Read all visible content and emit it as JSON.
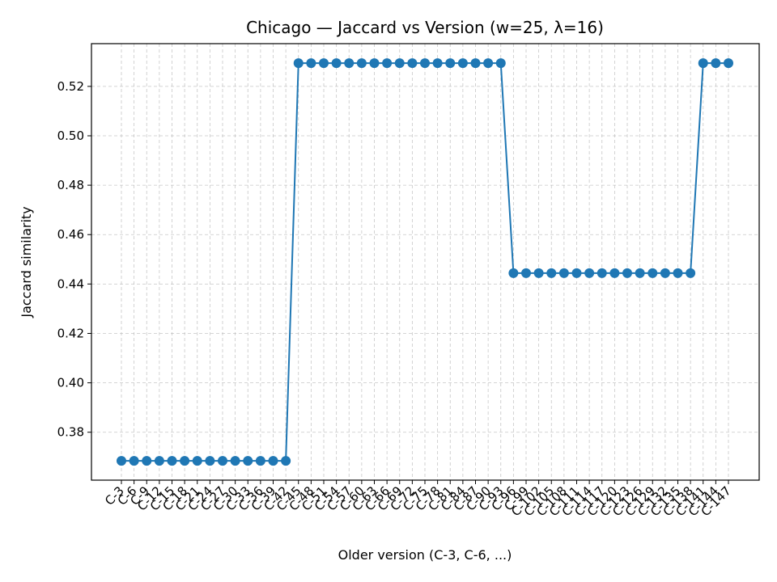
{
  "chart_data": {
    "type": "line",
    "title": "Chicago — Jaccard vs Version (w=25, λ=16)",
    "xlabel": "Older version (C-3, C-6, ...)",
    "ylabel": "Jaccard similarity",
    "categories": [
      "C-3",
      "C-6",
      "C-9",
      "C-12",
      "C-15",
      "C-18",
      "C-21",
      "C-24",
      "C-27",
      "C-30",
      "C-33",
      "C-36",
      "C-39",
      "C-42",
      "C-45",
      "C-48",
      "C-51",
      "C-54",
      "C-57",
      "C-60",
      "C-63",
      "C-66",
      "C-69",
      "C-72",
      "C-75",
      "C-78",
      "C-81",
      "C-84",
      "C-87",
      "C-90",
      "C-93",
      "C-96",
      "C-99",
      "C-102",
      "C-105",
      "C-108",
      "C-111",
      "C-114",
      "C-117",
      "C-120",
      "C-123",
      "C-126",
      "C-129",
      "C-132",
      "C-135",
      "C-138",
      "C-141",
      "C-144",
      "C-147"
    ],
    "series": [
      {
        "values": [
          0.3684,
          0.3684,
          0.3684,
          0.3684,
          0.3684,
          0.3684,
          0.3684,
          0.3684,
          0.3684,
          0.3684,
          0.3684,
          0.3684,
          0.3684,
          0.3684,
          0.5294,
          0.5294,
          0.5294,
          0.5294,
          0.5294,
          0.5294,
          0.5294,
          0.5294,
          0.5294,
          0.5294,
          0.5294,
          0.5294,
          0.5294,
          0.5294,
          0.5294,
          0.5294,
          0.5294,
          0.4444,
          0.4444,
          0.4444,
          0.4444,
          0.4444,
          0.4444,
          0.4444,
          0.4444,
          0.4444,
          0.4444,
          0.4444,
          0.4444,
          0.4444,
          0.4444,
          0.4444,
          0.5294,
          0.5294,
          0.5294
        ],
        "color": "#1f77b4"
      }
    ],
    "yticks": [
      0.38,
      0.4,
      0.42,
      0.44,
      0.46,
      0.48,
      0.5,
      0.52
    ],
    "ylim": [
      0.3606,
      0.5373
    ],
    "grid": true,
    "marker": "circle"
  }
}
